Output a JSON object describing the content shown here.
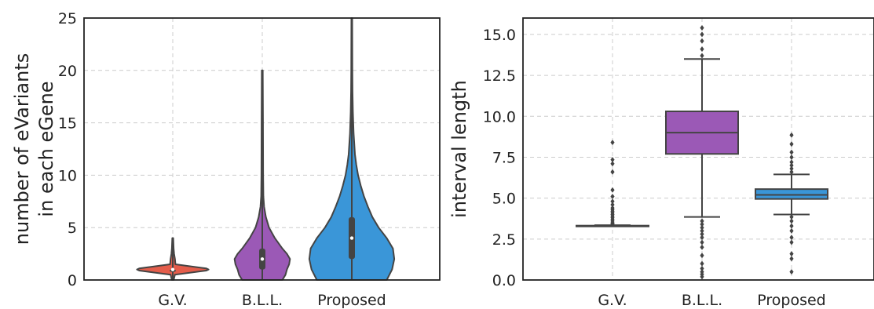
{
  "chart_data": [
    {
      "type": "violin",
      "categories": [
        "G.V.",
        "B.L.L.",
        "Proposed"
      ],
      "ylabel": [
        "number of eVariants",
        "in each eGene"
      ],
      "xlabel": "",
      "ylim": [
        0,
        25
      ],
      "yticks": [
        0,
        5,
        10,
        15,
        20,
        25
      ],
      "grid": true,
      "colors": [
        "#e45d4b",
        "#9b59b6",
        "#3a96d8"
      ],
      "series": [
        {
          "name": "G.V.",
          "min": 0,
          "max": 4,
          "q1": 1,
          "median": 1,
          "q3": 1,
          "density": [
            [
              0,
              0.02
            ],
            [
              0.5,
              0.05
            ],
            [
              0.9,
              0.75
            ],
            [
              1.0,
              0.8
            ],
            [
              1.1,
              0.75
            ],
            [
              1.5,
              0.06
            ],
            [
              2.0,
              0.05
            ],
            [
              2.5,
              0.03
            ],
            [
              3.0,
              0.02
            ],
            [
              4.0,
              0.01
            ]
          ]
        },
        {
          "name": "B.L.L.",
          "min": 0,
          "max": 20,
          "q1": 1,
          "median": 2,
          "q3": 3,
          "density": [
            [
              0,
              0.45
            ],
            [
              0.5,
              0.52
            ],
            [
              1,
              0.55
            ],
            [
              1.5,
              0.6
            ],
            [
              2,
              0.62
            ],
            [
              2.5,
              0.55
            ],
            [
              3,
              0.45
            ],
            [
              4,
              0.28
            ],
            [
              5,
              0.15
            ],
            [
              6,
              0.08
            ],
            [
              7,
              0.04
            ],
            [
              8,
              0.025
            ],
            [
              10,
              0.02
            ],
            [
              15,
              0.015
            ],
            [
              20,
              0.01
            ]
          ]
        },
        {
          "name": "Proposed",
          "min": 0,
          "max": 25,
          "q1": 2,
          "median": 4,
          "q3": 6,
          "density": [
            [
              0,
              0.78
            ],
            [
              1,
              0.9
            ],
            [
              2,
              0.95
            ],
            [
              3,
              0.92
            ],
            [
              4,
              0.78
            ],
            [
              5,
              0.6
            ],
            [
              6,
              0.46
            ],
            [
              7,
              0.36
            ],
            [
              8,
              0.27
            ],
            [
              9,
              0.2
            ],
            [
              10,
              0.14
            ],
            [
              11,
              0.1
            ],
            [
              12,
              0.07
            ],
            [
              14,
              0.04
            ],
            [
              16,
              0.025
            ],
            [
              18,
              0.015
            ],
            [
              20,
              0.012
            ],
            [
              25,
              0.008
            ]
          ]
        }
      ]
    },
    {
      "type": "box",
      "categories": [
        "G.V.",
        "B.L.L.",
        "Proposed"
      ],
      "ylabel": "interval length",
      "xlabel": "",
      "ylim": [
        0,
        16
      ],
      "yticks": [
        "0.0",
        "2.5",
        "5.0",
        "7.5",
        "10.0",
        "12.5",
        "15.0"
      ],
      "grid": true,
      "colors": [
        "#e45d4b",
        "#9b59b6",
        "#3a96d8"
      ],
      "series": [
        {
          "name": "G.V.",
          "whisker_low": 3.3,
          "q1": 3.3,
          "median": 3.3,
          "q3": 3.32,
          "whisker_high": 3.35,
          "outliers": [
            3.4,
            3.45,
            3.5,
            3.6,
            3.7,
            3.8,
            3.9,
            4.0,
            4.1,
            4.2,
            4.3,
            4.4,
            4.6,
            4.8,
            5.1,
            5.5,
            6.6,
            7.1,
            7.35,
            8.4
          ]
        },
        {
          "name": "B.L.L.",
          "whisker_low": 3.85,
          "q1": 7.7,
          "median": 9.0,
          "q3": 10.3,
          "whisker_high": 13.5,
          "outliers": [
            0.2,
            0.35,
            0.5,
            0.7,
            1.0,
            1.5,
            2.0,
            2.3,
            2.6,
            2.8,
            3.0,
            3.2,
            3.4,
            3.6,
            13.7,
            14.1,
            14.6,
            15.0,
            15.4
          ]
        },
        {
          "name": "Proposed",
          "whisker_low": 4.0,
          "q1": 4.95,
          "median": 5.2,
          "q3": 5.55,
          "whisker_high": 6.45,
          "outliers": [
            0.5,
            1.3,
            1.6,
            2.3,
            2.6,
            3.0,
            3.3,
            3.6,
            3.85,
            6.6,
            6.8,
            7.0,
            7.2,
            7.5,
            7.8,
            8.3,
            8.85
          ]
        }
      ]
    }
  ]
}
